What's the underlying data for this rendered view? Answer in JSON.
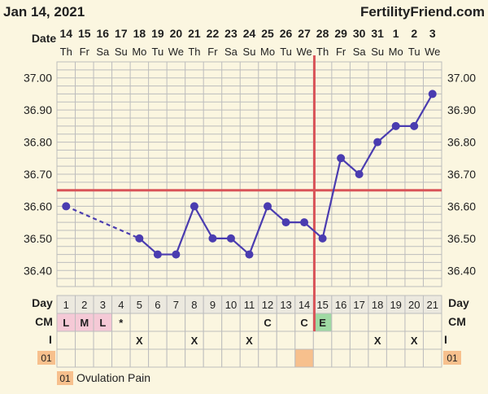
{
  "header": {
    "date": "Jan 14, 2021",
    "brand": "FertilityFriend.com"
  },
  "labels": {
    "date": "Date",
    "day": "Day",
    "cm": "CM",
    "i": "I",
    "chip": "01"
  },
  "legend": {
    "chip": "01",
    "text": "Ovulation Pain"
  },
  "colors": {
    "line": "#4a3cb0",
    "coverline": "#d95459",
    "grid": "#bdbdbd",
    "cell_pink": "#f5c9d6",
    "cell_green": "#9fd9a3",
    "cell_orange": "#f7c08d",
    "background": "#fbf6e0"
  },
  "columns": [
    {
      "date": "14",
      "dow": "Th",
      "day": "1",
      "cm": "L",
      "i": ""
    },
    {
      "date": "15",
      "dow": "Fr",
      "day": "2",
      "cm": "M",
      "i": ""
    },
    {
      "date": "16",
      "dow": "Sa",
      "day": "3",
      "cm": "L",
      "i": ""
    },
    {
      "date": "17",
      "dow": "Su",
      "day": "4",
      "cm": "*",
      "i": ""
    },
    {
      "date": "18",
      "dow": "Mo",
      "day": "5",
      "cm": "",
      "i": "X"
    },
    {
      "date": "19",
      "dow": "Tu",
      "day": "6",
      "cm": "",
      "i": ""
    },
    {
      "date": "20",
      "dow": "We",
      "day": "7",
      "cm": "",
      "i": ""
    },
    {
      "date": "21",
      "dow": "Th",
      "day": "8",
      "cm": "",
      "i": "X"
    },
    {
      "date": "22",
      "dow": "Fr",
      "day": "9",
      "cm": "",
      "i": ""
    },
    {
      "date": "23",
      "dow": "Sa",
      "day": "10",
      "cm": "",
      "i": ""
    },
    {
      "date": "24",
      "dow": "Su",
      "day": "11",
      "cm": "",
      "i": "X"
    },
    {
      "date": "25",
      "dow": "Mo",
      "day": "12",
      "cm": "C",
      "i": ""
    },
    {
      "date": "26",
      "dow": "Tu",
      "day": "13",
      "cm": "",
      "i": ""
    },
    {
      "date": "27",
      "dow": "We",
      "day": "14",
      "cm": "C",
      "i": ""
    },
    {
      "date": "28",
      "dow": "Th",
      "day": "15",
      "cm": "E",
      "i": ""
    },
    {
      "date": "29",
      "dow": "Fr",
      "day": "16",
      "cm": "",
      "i": ""
    },
    {
      "date": "30",
      "dow": "Sa",
      "day": "17",
      "cm": "",
      "i": ""
    },
    {
      "date": "31",
      "dow": "Su",
      "day": "18",
      "cm": "",
      "i": "X"
    },
    {
      "date": "1",
      "dow": "Mo",
      "day": "19",
      "cm": "",
      "i": ""
    },
    {
      "date": "2",
      "dow": "Tu",
      "day": "20",
      "cm": "",
      "i": "X"
    },
    {
      "date": "3",
      "dow": "We",
      "day": "21",
      "cm": "",
      "i": ""
    }
  ],
  "chart_data": {
    "type": "line",
    "x": [
      1,
      2,
      3,
      4,
      5,
      6,
      7,
      8,
      9,
      10,
      11,
      12,
      13,
      14,
      15,
      16,
      17,
      18,
      19,
      20,
      21
    ],
    "series": [
      {
        "values": [
          36.6,
          null,
          null,
          null,
          36.5,
          36.45,
          36.45,
          36.6,
          36.5,
          36.5,
          36.45,
          36.6,
          36.55,
          36.55,
          36.5,
          36.75,
          36.7,
          36.8,
          36.85,
          36.85,
          36.95
        ]
      }
    ],
    "ylim": [
      36.35,
      37.05
    ],
    "yticks": [
      "37.00",
      "36.90",
      "36.80",
      "36.70",
      "36.60",
      "36.50",
      "36.40"
    ],
    "coverline": 36.65,
    "ovulation_day": 15,
    "grid": true,
    "ovulation_pain_days": [
      14
    ]
  }
}
